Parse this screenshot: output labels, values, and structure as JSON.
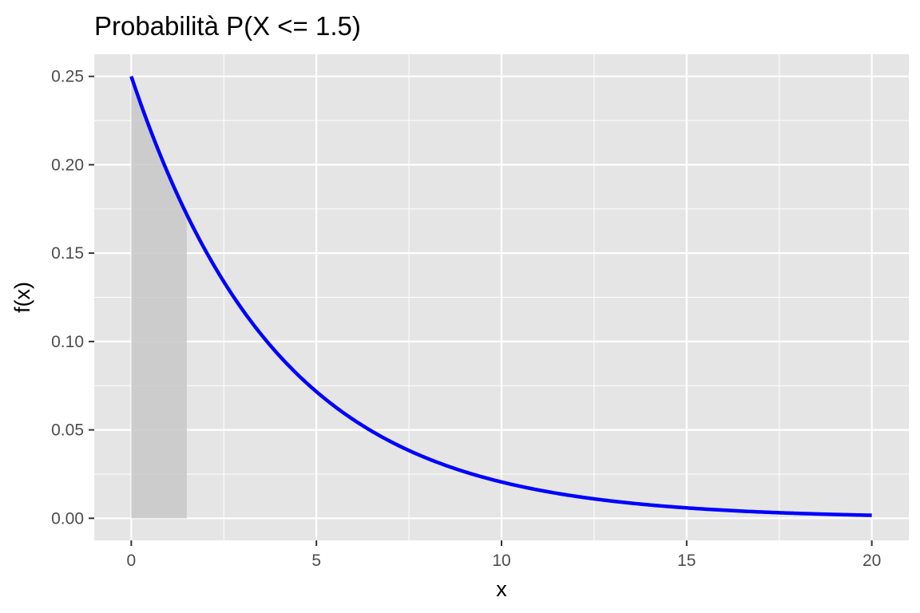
{
  "chart_data": {
    "type": "area",
    "title": "Probabilità P(X <= 1.5)",
    "xlabel": "x",
    "ylabel": "f(x)",
    "xlim": [
      -1,
      21
    ],
    "ylim": [
      -0.0125,
      0.2625
    ],
    "x_ticks": [
      0,
      5,
      10,
      15,
      20
    ],
    "x_tick_labels": [
      "0",
      "5",
      "10",
      "15",
      "20"
    ],
    "y_ticks": [
      0.0,
      0.05,
      0.1,
      0.15,
      0.2,
      0.25
    ],
    "y_tick_labels": [
      "0.00",
      "0.05",
      "0.10",
      "0.15",
      "0.20",
      "0.25"
    ],
    "grid": true,
    "series": [
      {
        "x": [
          0,
          0.5,
          1,
          1.5,
          2,
          3,
          4,
          5,
          6,
          7,
          8,
          9,
          10,
          11,
          12,
          13,
          14,
          15,
          16,
          17,
          18,
          19,
          20
        ],
        "values": [
          0.25,
          0.221,
          0.195,
          0.172,
          0.152,
          0.118,
          0.092,
          0.072,
          0.056,
          0.043,
          0.034,
          0.026,
          0.021,
          0.016,
          0.012,
          0.0097,
          0.0075,
          0.0059,
          0.0046,
          0.0036,
          0.0028,
          0.0022,
          0.0017
        ]
      }
    ],
    "shaded_region": {
      "from": 0,
      "to": 1.5
    },
    "colors": {
      "line": "#0000ff",
      "shade": "#c8c8c8",
      "panel": "#e5e5e5",
      "grid": "#ffffff"
    }
  }
}
